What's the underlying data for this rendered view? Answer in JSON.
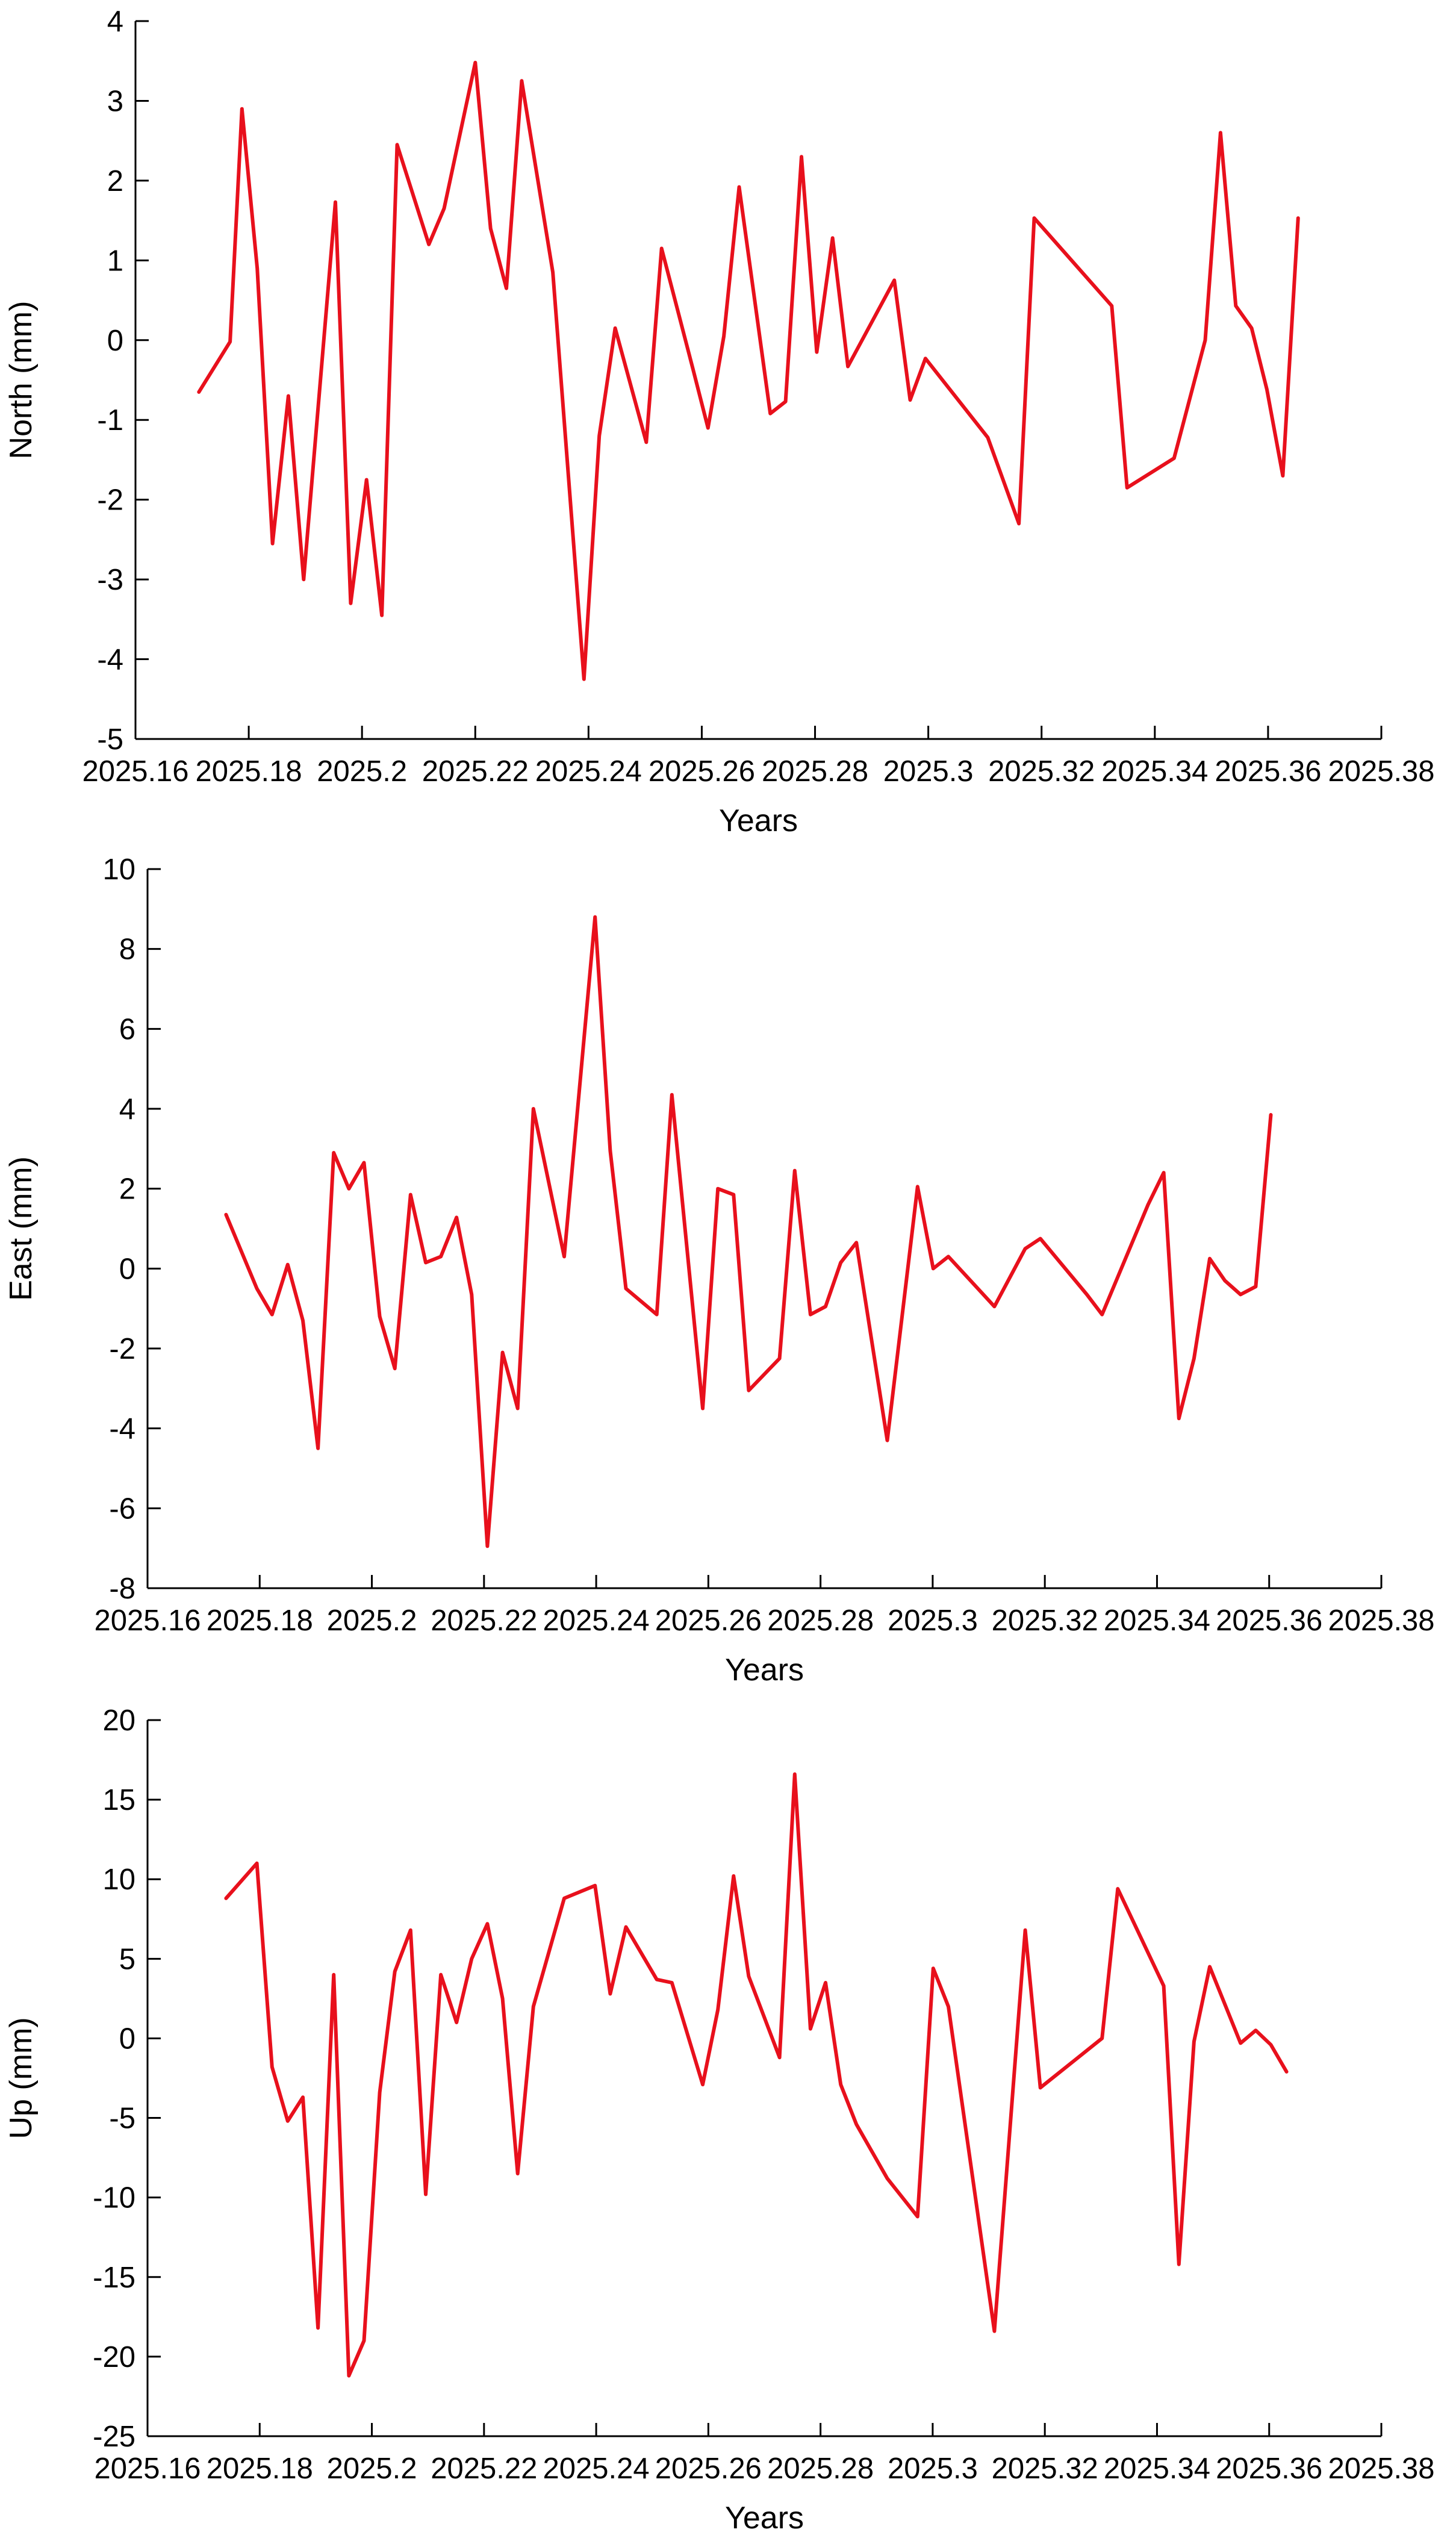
{
  "chart_data": [
    {
      "type": "line",
      "xlabel": "Years",
      "ylabel": "North (mm)",
      "xlim": [
        2025.16,
        2025.38
      ],
      "ylim": [
        -5,
        4
      ],
      "xticks": [
        "2025.16",
        "2025.18",
        "2025.2",
        "2025.22",
        "2025.24",
        "2025.26",
        "2025.28",
        "2025.3",
        "2025.32",
        "2025.34",
        "2025.36",
        "2025.38"
      ],
      "yticks": [
        "-5",
        "-4",
        "-3",
        "-2",
        "-1",
        "0",
        "1",
        "2",
        "3",
        "4"
      ],
      "grid": false,
      "color": "#e8101c",
      "x": [
        2025.1712,
        2025.1767,
        2025.1788,
        2025.1815,
        2025.1842,
        2025.187,
        2025.1897,
        2025.1953,
        2025.198,
        2025.2008,
        2025.2035,
        2025.2062,
        2025.2118,
        2025.2145,
        2025.22,
        2025.2227,
        2025.2255,
        2025.2282,
        2025.2337,
        2025.2392,
        2025.2419,
        2025.2447,
        2025.2502,
        2025.2529,
        2025.2584,
        2025.2611,
        2025.2639,
        2025.2666,
        2025.2721,
        2025.2748,
        2025.2776,
        2025.2803,
        2025.2831,
        2025.2858,
        2025.294,
        2025.2968,
        2025.2995,
        2025.3105,
        2025.316,
        2025.3187,
        2025.3324,
        2025.3351,
        2025.3434,
        2025.3489,
        2025.3516,
        2025.3543,
        2025.3571,
        2025.3598,
        2025.3626,
        2025.3653
      ],
      "y": [
        -0.65,
        -0.02,
        2.9,
        0.9,
        -2.55,
        -0.7,
        -3.0,
        1.73,
        -3.3,
        -1.75,
        -3.45,
        2.45,
        1.2,
        1.65,
        3.48,
        1.4,
        0.65,
        3.25,
        0.85,
        -4.25,
        -1.2,
        0.15,
        -1.28,
        1.15,
        -0.35,
        -1.1,
        0.05,
        1.92,
        -0.92,
        -0.77,
        2.3,
        -0.15,
        1.28,
        -0.33,
        0.75,
        -0.75,
        -0.23,
        -1.22,
        -2.3,
        1.53,
        0.43,
        -1.85,
        -1.48,
        0.0,
        2.6,
        0.43,
        0.15,
        -0.62,
        -1.7,
        1.53
      ]
    },
    {
      "type": "line",
      "xlabel": "Years",
      "ylabel": "East (mm)",
      "xlim": [
        2025.16,
        2025.38
      ],
      "ylim": [
        -8,
        10
      ],
      "xticks": [
        "2025.16",
        "2025.18",
        "2025.2",
        "2025.22",
        "2025.24",
        "2025.26",
        "2025.28",
        "2025.3",
        "2025.32",
        "2025.34",
        "2025.36",
        "2025.38"
      ],
      "yticks": [
        "-8",
        "-6",
        "-4",
        "-2",
        "0",
        "2",
        "4",
        "6",
        "8",
        "10"
      ],
      "grid": false,
      "color": "#e8101c",
      "x": [
        2025.174,
        2025.1795,
        2025.1822,
        2025.185,
        2025.1877,
        2025.1904,
        2025.1932,
        2025.1959,
        2025.1986,
        2025.2014,
        2025.2041,
        2025.2069,
        2025.2096,
        2025.2123,
        2025.2151,
        2025.2178,
        2025.2206,
        2025.2233,
        2025.226,
        2025.2288,
        2025.2343,
        2025.2398,
        2025.2425,
        2025.2453,
        2025.2508,
        2025.2535,
        2025.259,
        2025.2617,
        2025.2645,
        2025.2672,
        2025.2727,
        2025.2754,
        2025.2782,
        2025.2809,
        2025.2836,
        2025.2864,
        2025.2919,
        2025.2973,
        2025.3001,
        2025.3028,
        2025.311,
        2025.3165,
        2025.3192,
        2025.3275,
        2025.3302,
        2025.3384,
        2025.3412,
        2025.3439,
        2025.3466,
        2025.3494,
        2025.3521,
        2025.3549,
        2025.3576,
        2025.3603
      ],
      "y": [
        1.35,
        -0.5,
        -1.15,
        0.1,
        -1.3,
        -4.5,
        2.9,
        2.0,
        2.65,
        -1.2,
        -2.5,
        1.85,
        0.15,
        0.3,
        1.28,
        -0.65,
        -6.95,
        -2.1,
        -3.5,
        4.0,
        0.3,
        8.8,
        2.95,
        -0.5,
        -1.15,
        4.35,
        -3.5,
        2.0,
        1.85,
        -3.05,
        -2.25,
        2.45,
        -1.15,
        -0.95,
        0.15,
        0.65,
        -4.3,
        2.05,
        0.0,
        0.3,
        -0.95,
        0.5,
        0.75,
        -0.65,
        -1.15,
        1.6,
        2.4,
        -3.75,
        -2.25,
        0.25,
        -0.3,
        -0.65,
        -0.45,
        3.85
      ]
    },
    {
      "type": "line",
      "xlabel": "Years",
      "ylabel": "Up (mm)",
      "xlim": [
        2025.16,
        2025.38
      ],
      "ylim": [
        -25,
        20
      ],
      "xticks": [
        "2025.16",
        "2025.18",
        "2025.2",
        "2025.22",
        "2025.24",
        "2025.26",
        "2025.28",
        "2025.3",
        "2025.32",
        "2025.34",
        "2025.36",
        "2025.38"
      ],
      "yticks": [
        "-25",
        "-20",
        "-15",
        "-10",
        "-5",
        "0",
        "5",
        "10",
        "15",
        "20"
      ],
      "grid": false,
      "color": "#e8101c",
      "x": [
        2025.174,
        2025.1795,
        2025.1822,
        2025.185,
        2025.1877,
        2025.1904,
        2025.1932,
        2025.1959,
        2025.1986,
        2025.2014,
        2025.2041,
        2025.2069,
        2025.2096,
        2025.2123,
        2025.2151,
        2025.2178,
        2025.2206,
        2025.2233,
        2025.226,
        2025.2288,
        2025.2343,
        2025.2398,
        2025.2425,
        2025.2453,
        2025.2508,
        2025.2535,
        2025.259,
        2025.2617,
        2025.2645,
        2025.2672,
        2025.2727,
        2025.2754,
        2025.2782,
        2025.2809,
        2025.2836,
        2025.2864,
        2025.2919,
        2025.2973,
        2025.3001,
        2025.3028,
        2025.311,
        2025.3165,
        2025.3192,
        2025.3302,
        2025.333,
        2025.3412,
        2025.3439,
        2025.3466,
        2025.3494,
        2025.3549,
        2025.3576,
        2025.3603,
        2025.3631
      ],
      "y": [
        8.8,
        11.0,
        -1.8,
        -5.2,
        -3.7,
        -18.2,
        4.0,
        -21.2,
        -19.0,
        -3.4,
        4.2,
        6.8,
        -9.8,
        4.0,
        1.0,
        5.0,
        7.2,
        2.5,
        -8.5,
        2.0,
        8.8,
        9.6,
        2.8,
        7.0,
        3.7,
        3.5,
        -2.9,
        1.8,
        10.2,
        3.9,
        -1.2,
        16.6,
        0.6,
        3.5,
        -2.9,
        -5.4,
        -8.8,
        -11.2,
        4.4,
        2.0,
        -18.4,
        6.8,
        -3.1,
        0.0,
        9.4,
        3.3,
        -14.2,
        -0.2,
        4.5,
        -0.3,
        0.5,
        -0.4,
        -2.1
      ]
    }
  ]
}
